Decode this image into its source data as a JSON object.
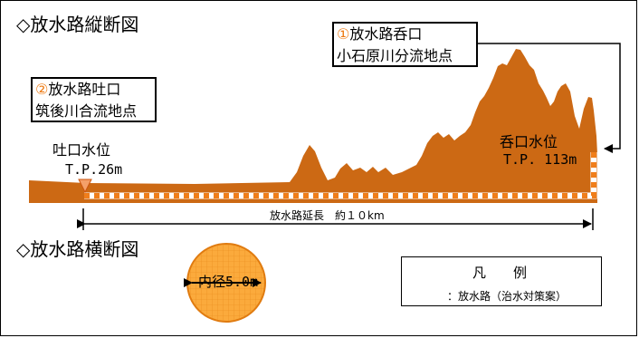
{
  "longitudinal": {
    "heading": "◇放水路縦断図",
    "inlet_box": {
      "number": "①",
      "title": "放水路呑口",
      "subtitle": "小石原川分流地点"
    },
    "outlet_box": {
      "number": "②",
      "title": "放水路吐口",
      "subtitle": "筑後川合流地点"
    },
    "outlet_level_label": "吐口水位",
    "outlet_level_value": "T.P.26m",
    "inlet_level_label": "呑口水位",
    "inlet_level_value": "T.P. 113m",
    "length_label": "放水路延長　約１０km"
  },
  "cross_section": {
    "heading": "◇放水路横断図",
    "diameter_label": "内径5.0m"
  },
  "legend": {
    "title": "凡　　例",
    "item_label": "：放水路（治水対策案）"
  },
  "colors": {
    "terrain": "#cc6914",
    "tunnel": "#f07e1a",
    "number_mark": "#ee7a12",
    "circle_fill": "#fbaa3c",
    "circle_stroke": "#e07b10"
  }
}
